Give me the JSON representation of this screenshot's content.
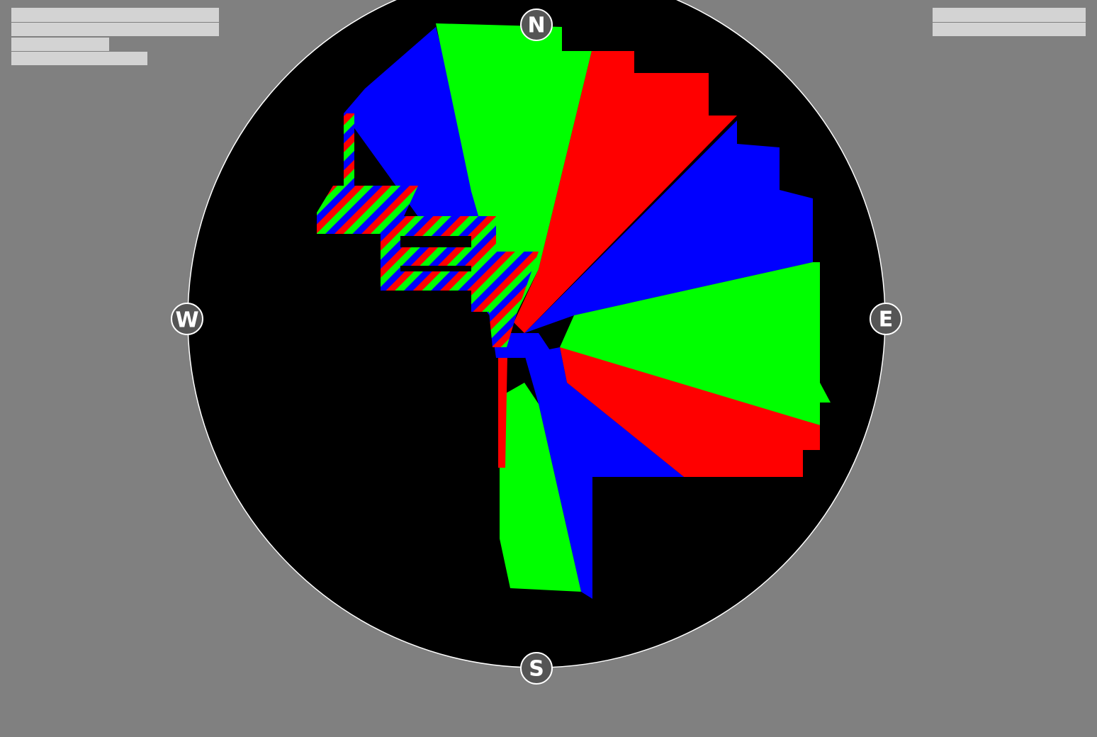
{
  "compass": {
    "north": "N",
    "east": "E",
    "south": "S",
    "west": "W"
  }
}
